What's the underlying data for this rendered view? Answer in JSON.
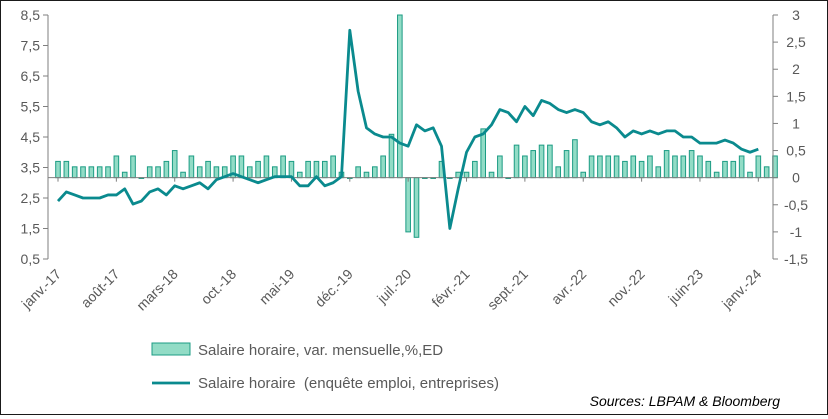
{
  "chart_data": {
    "type": "bar+line",
    "colors": {
      "bar_fill": "#92dcc6",
      "bar_stroke": "#1c9c84",
      "line": "#0a8a8e",
      "axis": "#7f7f7f",
      "text": "#595959"
    },
    "left_axis": {
      "ylim": [
        0.5,
        8.5
      ],
      "ticks": [
        "0,5",
        "1,5",
        "2,5",
        "3,5",
        "4,5",
        "5,5",
        "6,5",
        "7,5",
        "8,5"
      ],
      "tick_values": [
        0.5,
        1.5,
        2.5,
        3.5,
        4.5,
        5.5,
        6.5,
        7.5,
        8.5
      ]
    },
    "right_axis": {
      "ylim": [
        -1.5,
        3
      ],
      "ticks": [
        "-1,5",
        "-1",
        "-0,5",
        "0",
        "0,5",
        "1",
        "1,5",
        "2",
        "2,5",
        "3"
      ],
      "tick_values": [
        -1.5,
        -1,
        -0.5,
        0,
        0.5,
        1,
        1.5,
        2,
        2.5,
        3
      ]
    },
    "x_tick_labels": [
      "janv.-17",
      "août-17",
      "mars-18",
      "oct.-18",
      "mai-19",
      "déc.-19",
      "juil.-20",
      "févr.-21",
      "sept.-21",
      "avr.-22",
      "nov.-22",
      "juin-23",
      "janv.-24"
    ],
    "x_tick_indices": [
      0,
      7,
      14,
      21,
      28,
      35,
      42,
      49,
      56,
      63,
      70,
      77,
      84
    ],
    "series": [
      {
        "name": "Salaire horaire, var. mensuelle,%,ED",
        "type": "bar",
        "axis": "right",
        "values": [
          0.3,
          0.3,
          0.2,
          0.2,
          0.2,
          0.2,
          0.2,
          0.4,
          0.1,
          0.4,
          0.0,
          0.2,
          0.2,
          0.3,
          0.5,
          0.1,
          0.4,
          0.2,
          0.3,
          0.2,
          0.2,
          0.4,
          0.4,
          0.2,
          0.3,
          0.4,
          0.2,
          0.4,
          0.3,
          0.1,
          0.3,
          0.3,
          0.3,
          0.4,
          0.1,
          0.0,
          0.2,
          0.1,
          0.2,
          0.4,
          0.8,
          3.0,
          -1.0,
          -1.1,
          0.0,
          0.0,
          0.3,
          0.0,
          0.1,
          0.1,
          0.3,
          0.9,
          0.1,
          0.4,
          0.0,
          0.6,
          0.4,
          0.5,
          0.6,
          0.6,
          0.2,
          0.5,
          0.7,
          0.1,
          0.4,
          0.4,
          0.4,
          0.4,
          0.3,
          0.4,
          0.3,
          0.4,
          0.2,
          0.5,
          0.4,
          0.4,
          0.5,
          0.4,
          0.3,
          0.1,
          0.3,
          0.3,
          0.4,
          0.1,
          0.4,
          0.2,
          0.4
        ]
      },
      {
        "name": "Salaire horaire  (enquête emploi, entreprises)",
        "type": "line",
        "axis": "left",
        "values": [
          2.4,
          2.7,
          2.6,
          2.5,
          2.5,
          2.5,
          2.6,
          2.6,
          2.8,
          2.3,
          2.4,
          2.7,
          2.8,
          2.6,
          2.9,
          2.8,
          2.9,
          3.0,
          2.8,
          3.1,
          3.2,
          3.3,
          3.2,
          3.1,
          3.0,
          3.1,
          3.2,
          3.2,
          3.2,
          2.9,
          2.9,
          3.2,
          2.9,
          3.0,
          3.2,
          8.0,
          6.0,
          4.8,
          4.6,
          4.5,
          4.5,
          4.3,
          4.2,
          4.9,
          4.7,
          4.8,
          4.2,
          1.5,
          2.8,
          4.0,
          4.5,
          4.6,
          4.9,
          5.4,
          5.3,
          5.0,
          5.5,
          5.2,
          5.7,
          5.6,
          5.4,
          5.3,
          5.4,
          5.3,
          5.0,
          4.9,
          5.0,
          4.8,
          4.5,
          4.7,
          4.6,
          4.7,
          4.6,
          4.7,
          4.7,
          4.5,
          4.5,
          4.3,
          4.3,
          4.3,
          4.4,
          4.3,
          4.1,
          4.0,
          4.1
        ]
      }
    ],
    "legend": [
      "Salaire horaire, var. mensuelle,%,ED",
      "Salaire horaire  (enquête emploi, entreprises)"
    ],
    "legend_placement": "bottom",
    "source": "Sources: LBPAM & Bloomberg",
    "grid": false
  }
}
